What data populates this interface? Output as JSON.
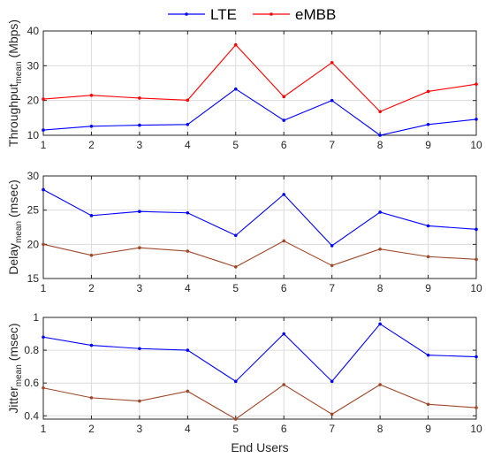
{
  "legend": {
    "placement": "top-center",
    "items": [
      {
        "label": "LTE",
        "color": "#0000ff"
      },
      {
        "label": "eMBB",
        "color": "#ff0000"
      }
    ]
  },
  "chart_data": [
    {
      "type": "line",
      "ylabel": {
        "main": "Throughput",
        "sub": "mean",
        "unit": "(Mbps)"
      },
      "xlabel": "",
      "x": [
        1,
        2,
        3,
        4,
        5,
        6,
        7,
        8,
        9,
        10
      ],
      "xlim": [
        1,
        10
      ],
      "ylim": [
        10,
        40
      ],
      "yticks": [
        10,
        20,
        30,
        40
      ],
      "grid": true,
      "series": [
        {
          "name": "LTE",
          "color": "#0000ff",
          "values": [
            11.5,
            12.6,
            12.9,
            13.1,
            23.3,
            14.3,
            20.0,
            10.0,
            13.1,
            14.6
          ]
        },
        {
          "name": "eMBB",
          "color": "#ff0000",
          "values": [
            20.4,
            21.5,
            20.7,
            20.1,
            36.0,
            21.1,
            30.9,
            16.8,
            22.6,
            24.7
          ]
        }
      ]
    },
    {
      "type": "line",
      "ylabel": {
        "main": "Delay",
        "sub": "mean",
        "unit": "(msec)"
      },
      "xlabel": "",
      "x": [
        1,
        2,
        3,
        4,
        5,
        6,
        7,
        8,
        9,
        10
      ],
      "xlim": [
        1,
        10
      ],
      "ylim": [
        15,
        30
      ],
      "yticks": [
        15,
        20,
        25,
        30
      ],
      "grid": true,
      "series": [
        {
          "name": "LTE",
          "color": "#0000ff",
          "values": [
            28.0,
            24.2,
            24.8,
            24.6,
            21.3,
            27.3,
            19.8,
            24.7,
            22.7,
            22.2
          ]
        },
        {
          "name": "eMBB",
          "color": "#a0482a",
          "values": [
            20.0,
            18.4,
            19.5,
            19.0,
            16.7,
            20.5,
            16.9,
            19.3,
            18.2,
            17.8
          ]
        }
      ]
    },
    {
      "type": "line",
      "ylabel": {
        "main": "Jitter",
        "sub": "mean",
        "unit": "(msec)"
      },
      "xlabel": "End Users",
      "x": [
        1,
        2,
        3,
        4,
        5,
        6,
        7,
        8,
        9,
        10
      ],
      "xlim": [
        1,
        10
      ],
      "ylim": [
        0.38,
        1.0
      ],
      "yticks": [
        0.4,
        0.6,
        0.8,
        1.0
      ],
      "yticklabels": [
        "0.4",
        "0.6",
        "0.8",
        "1"
      ],
      "grid": true,
      "series": [
        {
          "name": "LTE",
          "color": "#0000ff",
          "values": [
            0.88,
            0.83,
            0.81,
            0.8,
            0.61,
            0.9,
            0.61,
            0.96,
            0.77,
            0.76
          ]
        },
        {
          "name": "eMBB",
          "color": "#a0482a",
          "values": [
            0.57,
            0.51,
            0.49,
            0.55,
            0.38,
            0.59,
            0.41,
            0.59,
            0.47,
            0.45
          ]
        }
      ]
    }
  ]
}
